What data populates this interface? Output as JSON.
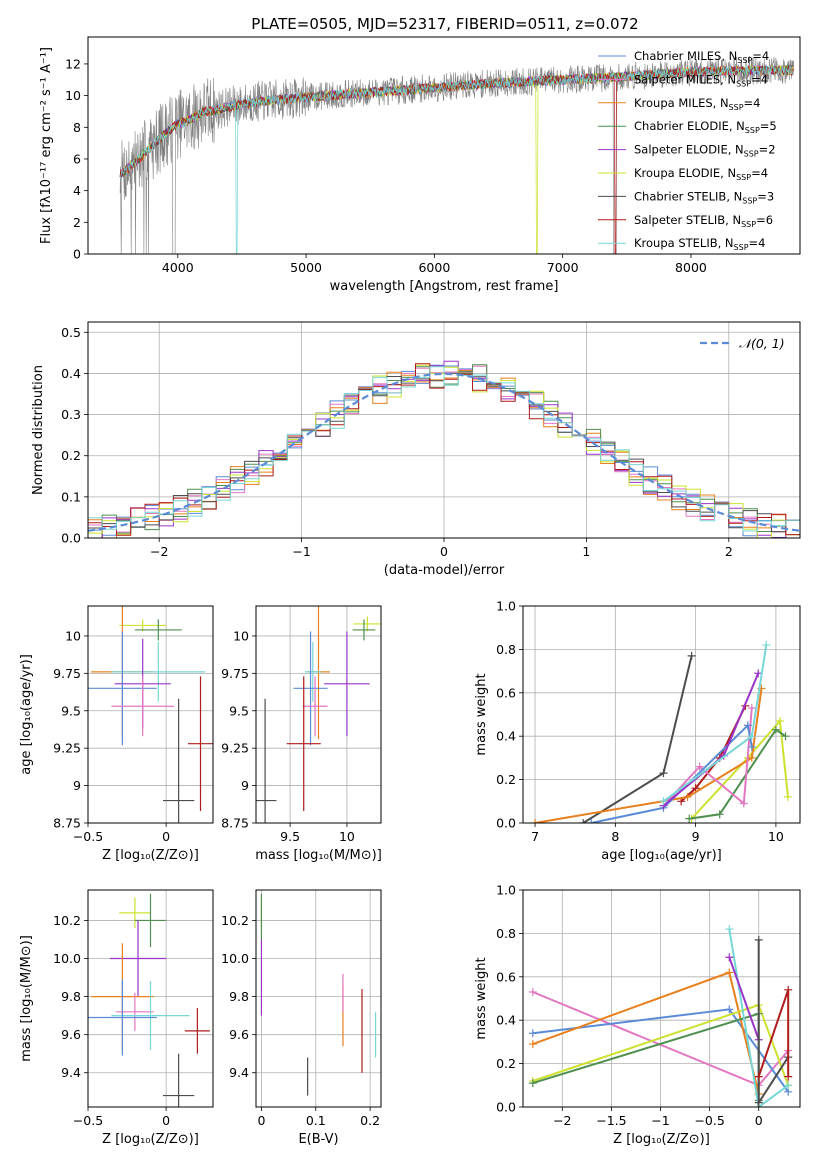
{
  "figure": {
    "title": "PLATE=0505, MJD=52317, FIBERID=0511, z=0.072"
  },
  "colors": {
    "Chabrier MILES": "#5b8bd6",
    "Salpeter MILES": "#e377c2",
    "Kroupa MILES": "#e8801d",
    "Chabrier ELODIE": "#4f8f4f",
    "Salpeter ELODIE": "#9a34c7",
    "Kroupa ELODIE": "#cde12f",
    "Chabrier STELIB": "#4d4d4d",
    "Salpeter STELIB": "#b01c1c",
    "Kroupa STELIB": "#77d6d6",
    "observed": "#808080",
    "gaussian": "#5b8bd6",
    "grid": "#b0b0b0"
  },
  "chart_data": [
    {
      "id": "spectrum",
      "type": "line",
      "xlabel": "wavelength [Angstrom, rest frame]",
      "ylabel": "Flux [fλ10⁻¹⁷ erg cm⁻² s⁻¹ A⁻¹]",
      "xlim": [
        3300,
        8850
      ],
      "ylim": [
        0,
        13.7
      ],
      "xticks": [
        4000,
        5000,
        6000,
        7000,
        8000
      ],
      "yticks": [
        0,
        2,
        4,
        6,
        8,
        10,
        12
      ],
      "grid": false,
      "legend_position": "bottom-right",
      "legend": [
        {
          "label": "Chabrier MILES, N",
          "sub": "SSP",
          "n": "=4",
          "color": "#5b8bd6"
        },
        {
          "label": "Salpeter MILES, N",
          "sub": "SSP",
          "n": "=4",
          "color": "#e377c2"
        },
        {
          "label": "Kroupa MILES, N",
          "sub": "SSP",
          "n": "=4",
          "color": "#e8801d"
        },
        {
          "label": "Chabrier ELODIE, N",
          "sub": "SSP",
          "n": "=5",
          "color": "#4f8f4f"
        },
        {
          "label": "Salpeter ELODIE, N",
          "sub": "SSP",
          "n": "=2",
          "color": "#9a34c7"
        },
        {
          "label": "Kroupa ELODIE, N",
          "sub": "SSP",
          "n": "=4",
          "color": "#cde12f"
        },
        {
          "label": "Chabrier STELIB, N",
          "sub": "SSP",
          "n": "=3",
          "color": "#4d4d4d"
        },
        {
          "label": "Salpeter STELIB, N",
          "sub": "SSP",
          "n": "=6",
          "color": "#b01c1c"
        },
        {
          "label": "Kroupa STELIB, N",
          "sub": "SSP",
          "n": "=4",
          "color": "#77d6d6"
        }
      ],
      "continuum_knots": [
        [
          3550,
          5.0
        ],
        [
          3700,
          6.0
        ],
        [
          3900,
          7.6
        ],
        [
          4000,
          8.2
        ],
        [
          4100,
          8.5
        ],
        [
          4200,
          9.0
        ],
        [
          4300,
          9.1
        ],
        [
          4400,
          9.3
        ],
        [
          4600,
          9.6
        ],
        [
          5000,
          9.9
        ],
        [
          5500,
          10.2
        ],
        [
          6000,
          10.5
        ],
        [
          6500,
          10.8
        ],
        [
          7000,
          11.0
        ],
        [
          7500,
          11.2
        ],
        [
          8000,
          11.5
        ],
        [
          8500,
          11.6
        ],
        [
          8800,
          11.6
        ]
      ],
      "model_range": [
        3550,
        8800
      ],
      "dips": [
        {
          "x": 4460,
          "color": "#77d6d6"
        },
        {
          "x": 6800,
          "color": "#cde12f"
        },
        {
          "x": 7410,
          "color": "#b01c1c"
        }
      ]
    },
    {
      "id": "residuals",
      "type": "histogram",
      "xlabel": "(data-model)/error",
      "ylabel": "Normed distribution",
      "xlim": [
        -2.5,
        2.5
      ],
      "ylim": [
        0,
        0.525
      ],
      "xticks": [
        -2,
        -1,
        0,
        1,
        2
      ],
      "yticks": [
        0.0,
        0.1,
        0.2,
        0.3,
        0.4,
        0.5
      ],
      "grid": true,
      "legend_position": "top-right",
      "gaussian_label": "𝒩(0, 1)",
      "bin_width": 0.1
    },
    {
      "id": "age-vs-Z",
      "type": "scatter",
      "xlabel": "Z [log₁₀(Z/Z⊙)]",
      "ylabel": "age  [log₁₀(age/yr)]",
      "xlim": [
        -0.5,
        0.3
      ],
      "ylim": [
        8.75,
        10.2
      ],
      "xticks": [
        -0.5,
        0.0
      ],
      "yticks": [
        8.75,
        9.0,
        9.25,
        9.5,
        9.75,
        10.0
      ],
      "grid": true,
      "points": [
        {
          "color": "#cde12f",
          "x": -0.15,
          "xerr": 0.15,
          "y": 10.07,
          "yerr": 0.04
        },
        {
          "color": "#4f8f4f",
          "x": -0.05,
          "xerr": 0.15,
          "y": 10.04,
          "yerr": 0.07
        },
        {
          "color": "#e8801d",
          "x": -0.28,
          "xerr": 0.2,
          "y": 9.76,
          "yerr": 0.45
        },
        {
          "color": "#77d6d6",
          "x": -0.05,
          "xerr": 0.3,
          "y": 9.76,
          "yerr": 0.2
        },
        {
          "color": "#9a34c7",
          "x": -0.15,
          "xerr": 0.18,
          "y": 9.68,
          "yerr": 0.3
        },
        {
          "color": "#5b8bd6",
          "x": -0.28,
          "xerr": 0.22,
          "y": 9.65,
          "yerr": 0.38
        },
        {
          "color": "#e377c2",
          "x": -0.15,
          "xerr": 0.2,
          "y": 9.53,
          "yerr": 0.2
        },
        {
          "color": "#b01c1c",
          "x": 0.22,
          "xerr": 0.08,
          "y": 9.28,
          "yerr": 0.45
        },
        {
          "color": "#4d4d4d",
          "x": 0.08,
          "xerr": 0.1,
          "y": 8.9,
          "yerr": 0.68
        }
      ]
    },
    {
      "id": "age-vs-mass",
      "type": "scatter",
      "xlabel": "mass [log₁₀(M/M⊙)]",
      "ylabel": "",
      "xlim": [
        9.2,
        10.3
      ],
      "ylim": [
        8.75,
        10.2
      ],
      "xticks": [
        9.5,
        10.0
      ],
      "yticks": [
        8.75,
        9.0,
        9.25,
        9.5,
        9.75,
        10.0
      ],
      "grid": true,
      "points": [
        {
          "color": "#cde12f",
          "x": 10.18,
          "xerr": 0.12,
          "y": 10.08,
          "yerr": 0.05
        },
        {
          "color": "#4f8f4f",
          "x": 10.15,
          "xerr": 0.1,
          "y": 10.04,
          "yerr": 0.07
        },
        {
          "color": "#e8801d",
          "x": 9.75,
          "xerr": 0.1,
          "y": 9.76,
          "yerr": 0.45
        },
        {
          "color": "#77d6d6",
          "x": 9.7,
          "xerr": 0.07,
          "y": 9.76,
          "yerr": 0.2
        },
        {
          "color": "#9a34c7",
          "x": 10.0,
          "xerr": 0.2,
          "y": 9.68,
          "yerr": 0.35
        },
        {
          "color": "#5b8bd6",
          "x": 9.68,
          "xerr": 0.15,
          "y": 9.65,
          "yerr": 0.38
        },
        {
          "color": "#e377c2",
          "x": 9.72,
          "xerr": 0.11,
          "y": 9.53,
          "yerr": 0.2
        },
        {
          "color": "#b01c1c",
          "x": 9.62,
          "xerr": 0.15,
          "y": 9.28,
          "yerr": 0.45
        },
        {
          "color": "#4d4d4d",
          "x": 9.28,
          "xerr": 0.1,
          "y": 8.9,
          "yerr": 0.68
        }
      ]
    },
    {
      "id": "massweight-vs-age",
      "type": "line",
      "xlabel": "age  [log₁₀(age/yr)]",
      "ylabel": "mass weight",
      "xlim": [
        6.85,
        10.3
      ],
      "ylim": [
        0,
        1.0
      ],
      "xticks": [
        7,
        8,
        9,
        10
      ],
      "yticks": [
        0.0,
        0.2,
        0.4,
        0.6,
        0.8,
        1.0
      ],
      "grid": true,
      "series": [
        {
          "color": "#cde12f",
          "x": [
            8.95,
            9.65,
            10.05,
            10.15
          ],
          "y": [
            0.02,
            0.3,
            0.47,
            0.12
          ]
        },
        {
          "color": "#4f8f4f",
          "x": [
            8.92,
            9.3,
            10.0,
            10.12
          ],
          "y": [
            0.02,
            0.04,
            0.43,
            0.4
          ]
        },
        {
          "color": "#4d4d4d",
          "x": [
            7.6,
            8.6,
            8.95
          ],
          "y": [
            0.0,
            0.23,
            0.77
          ]
        },
        {
          "color": "#b01c1c",
          "x": [
            8.82,
            9.0,
            9.3,
            9.62
          ],
          "y": [
            0.1,
            0.16,
            0.3,
            0.54
          ]
        },
        {
          "color": "#e8801d",
          "x": [
            7.0,
            8.9,
            9.7,
            9.82
          ],
          "y": [
            0.0,
            0.12,
            0.3,
            0.62
          ]
        },
        {
          "color": "#e377c2",
          "x": [
            8.65,
            9.05,
            9.6,
            9.7
          ],
          "y": [
            0.1,
            0.26,
            0.09,
            0.53
          ]
        },
        {
          "color": "#5b8bd6",
          "x": [
            7.7,
            8.6,
            9.65,
            9.7
          ],
          "y": [
            0.0,
            0.07,
            0.45,
            0.35
          ]
        },
        {
          "color": "#9a34c7",
          "x": [
            8.6,
            9.35,
            9.78
          ],
          "y": [
            0.08,
            0.31,
            0.69
          ]
        },
        {
          "color": "#77d6d6",
          "x": [
            8.6,
            9.7,
            9.88
          ],
          "y": [
            0.1,
            0.4,
            0.82
          ]
        }
      ]
    },
    {
      "id": "mass-vs-Z",
      "type": "scatter",
      "xlabel": "Z [log₁₀(Z/Z⊙)]",
      "ylabel": "mass [log₁₀(M/M⊙)]",
      "xlim": [
        -0.5,
        0.3
      ],
      "ylim": [
        9.22,
        10.36
      ],
      "xticks": [
        -0.5,
        0.0
      ],
      "yticks": [
        9.4,
        9.6,
        9.8,
        10.0,
        10.2
      ],
      "grid": true,
      "points": [
        {
          "color": "#cde12f",
          "x": -0.2,
          "xerr": 0.1,
          "y": 10.24,
          "yerr": 0.08
        },
        {
          "color": "#4f8f4f",
          "x": -0.1,
          "xerr": 0.1,
          "y": 10.2,
          "yerr": 0.14
        },
        {
          "color": "#9a34c7",
          "x": -0.18,
          "xerr": 0.18,
          "y": 10.0,
          "yerr": 0.2
        },
        {
          "color": "#e8801d",
          "x": -0.28,
          "xerr": 0.2,
          "y": 9.8,
          "yerr": 0.28
        },
        {
          "color": "#e377c2",
          "x": -0.2,
          "xerr": 0.12,
          "y": 9.72,
          "yerr": 0.1
        },
        {
          "color": "#77d6d6",
          "x": -0.1,
          "xerr": 0.25,
          "y": 9.7,
          "yerr": 0.18
        },
        {
          "color": "#5b8bd6",
          "x": -0.28,
          "xerr": 0.22,
          "y": 9.69,
          "yerr": 0.2
        },
        {
          "color": "#b01c1c",
          "x": 0.2,
          "xerr": 0.08,
          "y": 9.62,
          "yerr": 0.12
        },
        {
          "color": "#4d4d4d",
          "x": 0.08,
          "xerr": 0.1,
          "y": 9.28,
          "yerr": 0.22
        }
      ]
    },
    {
      "id": "mass-vs-EBV",
      "type": "scatter",
      "xlabel": "E(B-V)",
      "ylabel": "",
      "xlim": [
        -0.01,
        0.22
      ],
      "ylim": [
        9.22,
        10.36
      ],
      "xticks": [
        0.0,
        0.1,
        0.2
      ],
      "yticks": [
        9.4,
        9.6,
        9.8,
        10.0,
        10.2
      ],
      "grid": true,
      "points": [
        {
          "color": "#cde12f",
          "x": 0.0,
          "xerr": 0.0,
          "y": 10.24,
          "yerr": 0.08
        },
        {
          "color": "#4f8f4f",
          "x": 0.0,
          "xerr": 0.0,
          "y": 10.22,
          "yerr": 0.12
        },
        {
          "color": "#9a34c7",
          "x": 0.0,
          "xerr": 0.0,
          "y": 9.9,
          "yerr": 0.2
        },
        {
          "color": "#e8801d",
          "x": 0.15,
          "xerr": 0.0,
          "y": 9.7,
          "yerr": 0.16
        },
        {
          "color": "#e377c2",
          "x": 0.15,
          "xerr": 0.0,
          "y": 9.82,
          "yerr": 0.1
        },
        {
          "color": "#b01c1c",
          "x": 0.185,
          "xerr": 0.0,
          "y": 9.62,
          "yerr": 0.22
        },
        {
          "color": "#77d6d6",
          "x": 0.21,
          "xerr": 0.0,
          "y": 9.6,
          "yerr": 0.12
        },
        {
          "color": "#4d4d4d",
          "x": 0.085,
          "xerr": 0.0,
          "y": 9.38,
          "yerr": 0.1
        }
      ]
    },
    {
      "id": "massweight-vs-Z",
      "type": "line",
      "xlabel": "Z [log₁₀(Z/Z⊙)]",
      "ylabel": "mass weight",
      "xlim": [
        -2.4,
        0.42
      ],
      "ylim": [
        0,
        1.0
      ],
      "xticks": [
        -2.0,
        -1.5,
        -1.0,
        -0.5,
        0.0
      ],
      "yticks": [
        0.0,
        0.2,
        0.4,
        0.6,
        0.8,
        1.0
      ],
      "grid": true,
      "series": [
        {
          "color": "#e377c2",
          "x": [
            -2.3,
            0.0,
            0.3
          ],
          "y": [
            0.53,
            0.1,
            0.26
          ]
        },
        {
          "color": "#5b8bd6",
          "x": [
            -2.3,
            -0.3,
            0.3
          ],
          "y": [
            0.34,
            0.45,
            0.07
          ]
        },
        {
          "color": "#e8801d",
          "x": [
            -2.3,
            -0.3,
            0.0
          ],
          "y": [
            0.29,
            0.62,
            0.06
          ]
        },
        {
          "color": "#cde12f",
          "x": [
            -2.3,
            0.0,
            0.3
          ],
          "y": [
            0.12,
            0.47,
            0.1
          ]
        },
        {
          "color": "#4f8f4f",
          "x": [
            -2.3,
            0.0,
            0.0
          ],
          "y": [
            0.11,
            0.43,
            0.03
          ]
        },
        {
          "color": "#77d6d6",
          "x": [
            -0.3,
            0.0,
            0.3
          ],
          "y": [
            0.82,
            0.0,
            0.1
          ]
        },
        {
          "color": "#9a34c7",
          "x": [
            -0.3,
            0.0
          ],
          "y": [
            0.69,
            0.31
          ]
        },
        {
          "color": "#4d4d4d",
          "x": [
            0.0,
            0.0,
            0.3
          ],
          "y": [
            0.77,
            0.02,
            0.23
          ]
        },
        {
          "color": "#b01c1c",
          "x": [
            0.0,
            0.3,
            0.3
          ],
          "y": [
            0.14,
            0.54,
            0.14
          ]
        }
      ]
    }
  ]
}
